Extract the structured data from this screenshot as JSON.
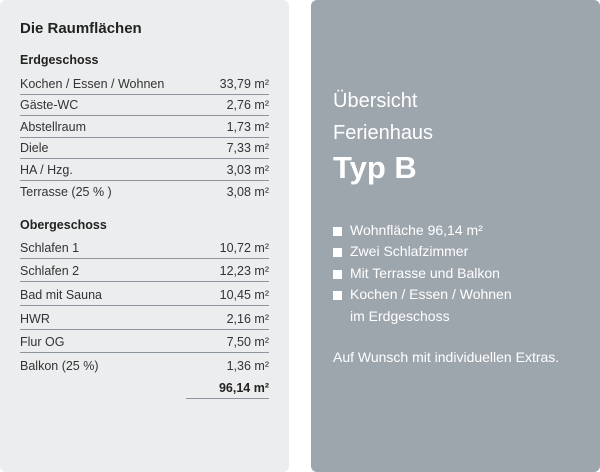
{
  "left": {
    "title": "Die Raumflächen",
    "sections": [
      {
        "title": "Erdgeschoss",
        "rows": [
          {
            "name": "Kochen / Essen / Wohnen",
            "area": "33,79 m²"
          },
          {
            "name": "Gäste-WC",
            "area": "2,76 m²"
          },
          {
            "name": "Abstellraum",
            "area": "1,73 m²"
          },
          {
            "name": "Diele",
            "area": "7,33 m²"
          },
          {
            "name": "HA / Hzg.",
            "area": "3,03 m²"
          },
          {
            "name": "Terrasse (25 % )",
            "area": "3,08 m²"
          }
        ]
      },
      {
        "title": "Obergeschoss",
        "rows": [
          {
            "name": "Schlafen 1",
            "area": "10,72 m²"
          },
          {
            "name": "Schlafen 2",
            "area": "12,23 m²"
          },
          {
            "name": "Bad mit Sauna",
            "area": "10,45 m²"
          },
          {
            "name": "HWR",
            "area": "2,16 m²"
          },
          {
            "name": "Flur OG",
            "area": "7,50 m²"
          },
          {
            "name": "Balkon (25 %)",
            "area": "1,36 m²"
          }
        ]
      }
    ],
    "total": "96,14 m²"
  },
  "right": {
    "heading_line1": "Übersicht",
    "heading_line2": "Ferienhaus",
    "heading_line3": "Typ B",
    "features": [
      "Wohnfläche 96,14 m²",
      "Zwei Schlafzimmer",
      "Mit Terrasse und Balkon",
      "Kochen / Essen / Wohnen"
    ],
    "feature_continuation": "im Erdgeschoss",
    "note": "Auf Wunsch mit individuellen Extras."
  },
  "colors": {
    "left_background": "#ecedee",
    "right_background": "#9ea6ad",
    "divider": "#8d969e"
  }
}
